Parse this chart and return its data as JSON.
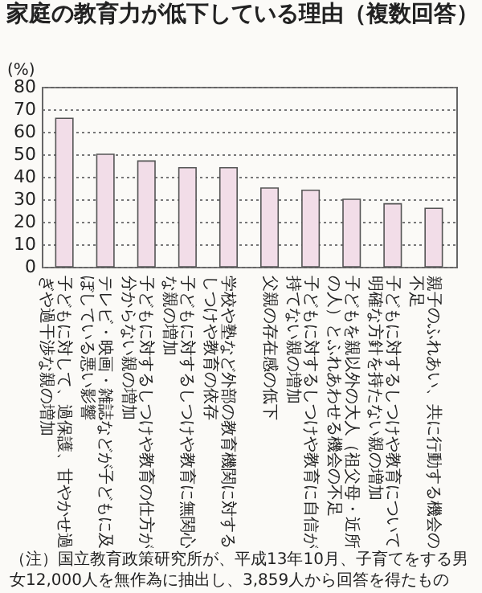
{
  "chart_data": {
    "type": "bar",
    "title": "家庭の教育力が低下している理由（複数回答）",
    "ylabel": "(%)",
    "categories": [
      "子どもに対して、過保護、甘やかせ過ぎや過干渉な親の増加",
      "テレビ・映画・雑誌などが子どもに及ぼしている悪い影響",
      "子どもに対するしつけや教育の仕方が分からない親の増加",
      "子どもに対するしつけや教育に無関心な親の増加",
      "学校や塾など外部の教育機関に対するしつけや教育の依存",
      "父親の存在感の低下",
      "子どもに対するしつけや教育に自信が持てない親の増加",
      "子どもを親以外の大人（祖父母・近所の人）とふれあわせる機会の不足",
      "子どもに対するしつけや教育について明確な方針を持たない親の増加",
      "親子のふれあい、共に行動する機会の不足"
    ],
    "values": [
      66,
      50,
      47,
      44,
      44,
      35,
      34,
      30,
      28,
      26
    ],
    "color": "#f2dde8",
    "ylim": [
      0,
      80
    ],
    "yticks": [
      0,
      10,
      20,
      30,
      40,
      50,
      60,
      70,
      80
    ],
    "grid": "y",
    "annotations": [
      "（注）国立教育政策研究所が、平成13年10月、子育てをする男女12,000人を無作為に抽出し、3,859人から回答を得たもの"
    ]
  }
}
